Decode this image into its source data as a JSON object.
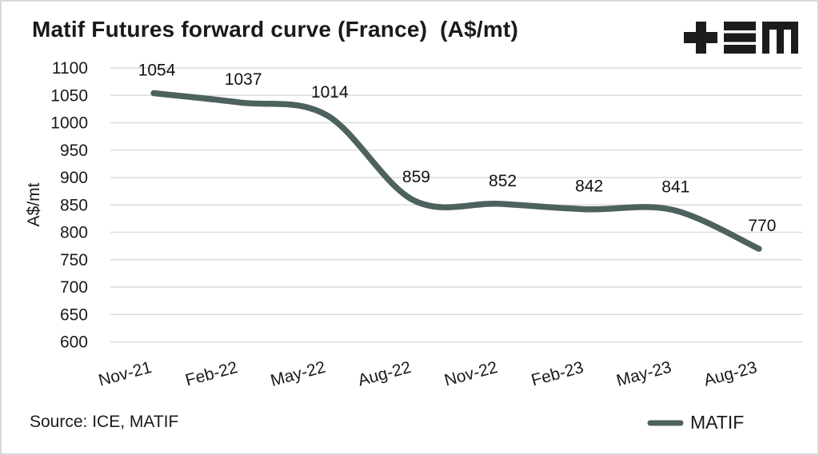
{
  "frame": {
    "background": "#ffffff",
    "border_color": "#d9d9d9"
  },
  "header": {
    "title": "Matif Futures forward curve (France)  (A$/mt)",
    "logo": {
      "name": "tem-logo",
      "glyphs": [
        "plus",
        "triple-bar",
        "m-mark"
      ],
      "color": "#1c1c1c"
    }
  },
  "footer": {
    "source": "Source: ICE, MATIF"
  },
  "chart_data": {
    "type": "line",
    "title": "Matif Futures forward curve (France)  (A$/mt)",
    "categories": [
      "Nov-21",
      "Feb-22",
      "May-22",
      "Aug-22",
      "Nov-22",
      "Feb-23",
      "May-23",
      "Aug-23"
    ],
    "series": [
      {
        "name": "MATIF",
        "color": "#4d625e",
        "values": [
          1054,
          1037,
          1014,
          859,
          852,
          842,
          841,
          770
        ]
      }
    ],
    "data_labels": [
      1054,
      1037,
      1014,
      859,
      852,
      842,
      841,
      770
    ],
    "xlabel": "",
    "ylabel": "A$/mt",
    "ylim": [
      600,
      1100
    ],
    "ytick_step": 50,
    "yticks": [
      600,
      650,
      700,
      750,
      800,
      850,
      900,
      950,
      1000,
      1050,
      1100
    ],
    "grid": "horizontal-only",
    "gridline_color": "#dcdcdc",
    "text_color": "#1a1a1a",
    "x_label_rotation_deg": -15,
    "smoothed": true,
    "legend_position": "bottom-right"
  }
}
